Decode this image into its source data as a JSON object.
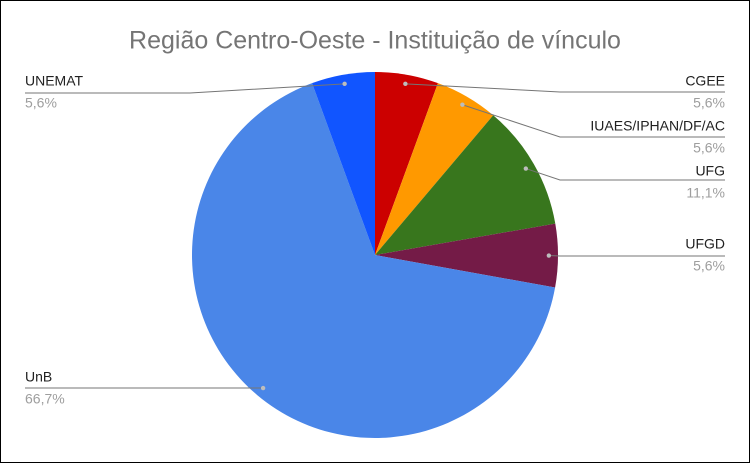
{
  "chart_data": {
    "type": "pie",
    "title": "Região Centro-Oeste - Instituição de vínculo",
    "categories": [
      "CGEE",
      "IUAES/IPHAN/DF/AC",
      "UFG",
      "UFGD",
      "UnB",
      "UNEMAT"
    ],
    "values": [
      5.6,
      5.6,
      11.1,
      5.6,
      66.7,
      5.6
    ],
    "value_labels": [
      "5,6%",
      "5,6%",
      "11,1%",
      "5,6%",
      "66,7%",
      "5,6%"
    ],
    "colors": [
      "#cc0000",
      "#ff9900",
      "#38761d",
      "#741b47",
      "#4a86e8",
      "#1155ff"
    ]
  }
}
